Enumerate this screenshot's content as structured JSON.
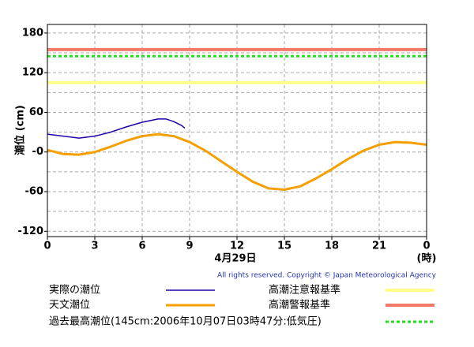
{
  "chart_data": {
    "type": "line",
    "ylabel": "潮位 (cm)",
    "xlabel": "4月29日",
    "xunit": "(時)",
    "copyright": "All rights reserved. Copyright © Japan Meteorological Agency",
    "xlim": [
      0,
      24
    ],
    "xticks": [
      0,
      3,
      6,
      9,
      12,
      15,
      18,
      21,
      {
        "value": 24,
        "label": "0"
      }
    ],
    "ylim": [
      -128,
      193
    ],
    "yticks": [
      180,
      120,
      60,
      {
        "value": 0,
        "label": "-0"
      },
      -60,
      -120
    ],
    "y_minor_grid": [
      150,
      90,
      30,
      -30,
      -90
    ],
    "grid": true,
    "series": [
      {
        "name": "実際の潮位",
        "color": "#2200aa",
        "x": [
          0,
          1,
          2,
          3,
          4,
          5,
          6,
          7,
          7.5,
          8,
          8.5,
          8.7
        ],
        "values": [
          27,
          24,
          21,
          24,
          30,
          38,
          45,
          50,
          50,
          46,
          40,
          36
        ]
      },
      {
        "name": "天文潮位",
        "color": "#f5a000",
        "x": [
          0,
          1,
          2,
          3,
          4,
          5,
          6,
          7,
          8,
          9,
          10,
          11,
          12,
          13,
          14,
          15,
          16,
          17,
          18,
          19,
          20,
          21,
          22,
          23,
          24
        ],
        "values": [
          3,
          -3,
          -4,
          0,
          8,
          17,
          24,
          27,
          24,
          15,
          2,
          -14,
          -30,
          -45,
          -55,
          -57,
          -52,
          -40,
          -26,
          -11,
          2,
          11,
          15,
          14,
          11
        ]
      }
    ],
    "thresholds": [
      {
        "name": "高潮注意報基準",
        "color": "#ffff88",
        "value": 105
      },
      {
        "name": "高潮警報基準",
        "color": "#f57a6a",
        "value": 155
      },
      {
        "name": "過去最高潮位(145cm:2006年10月07日03時47分:低気圧)",
        "color": "#22dd22",
        "value": 145,
        "dashed": true
      }
    ]
  }
}
